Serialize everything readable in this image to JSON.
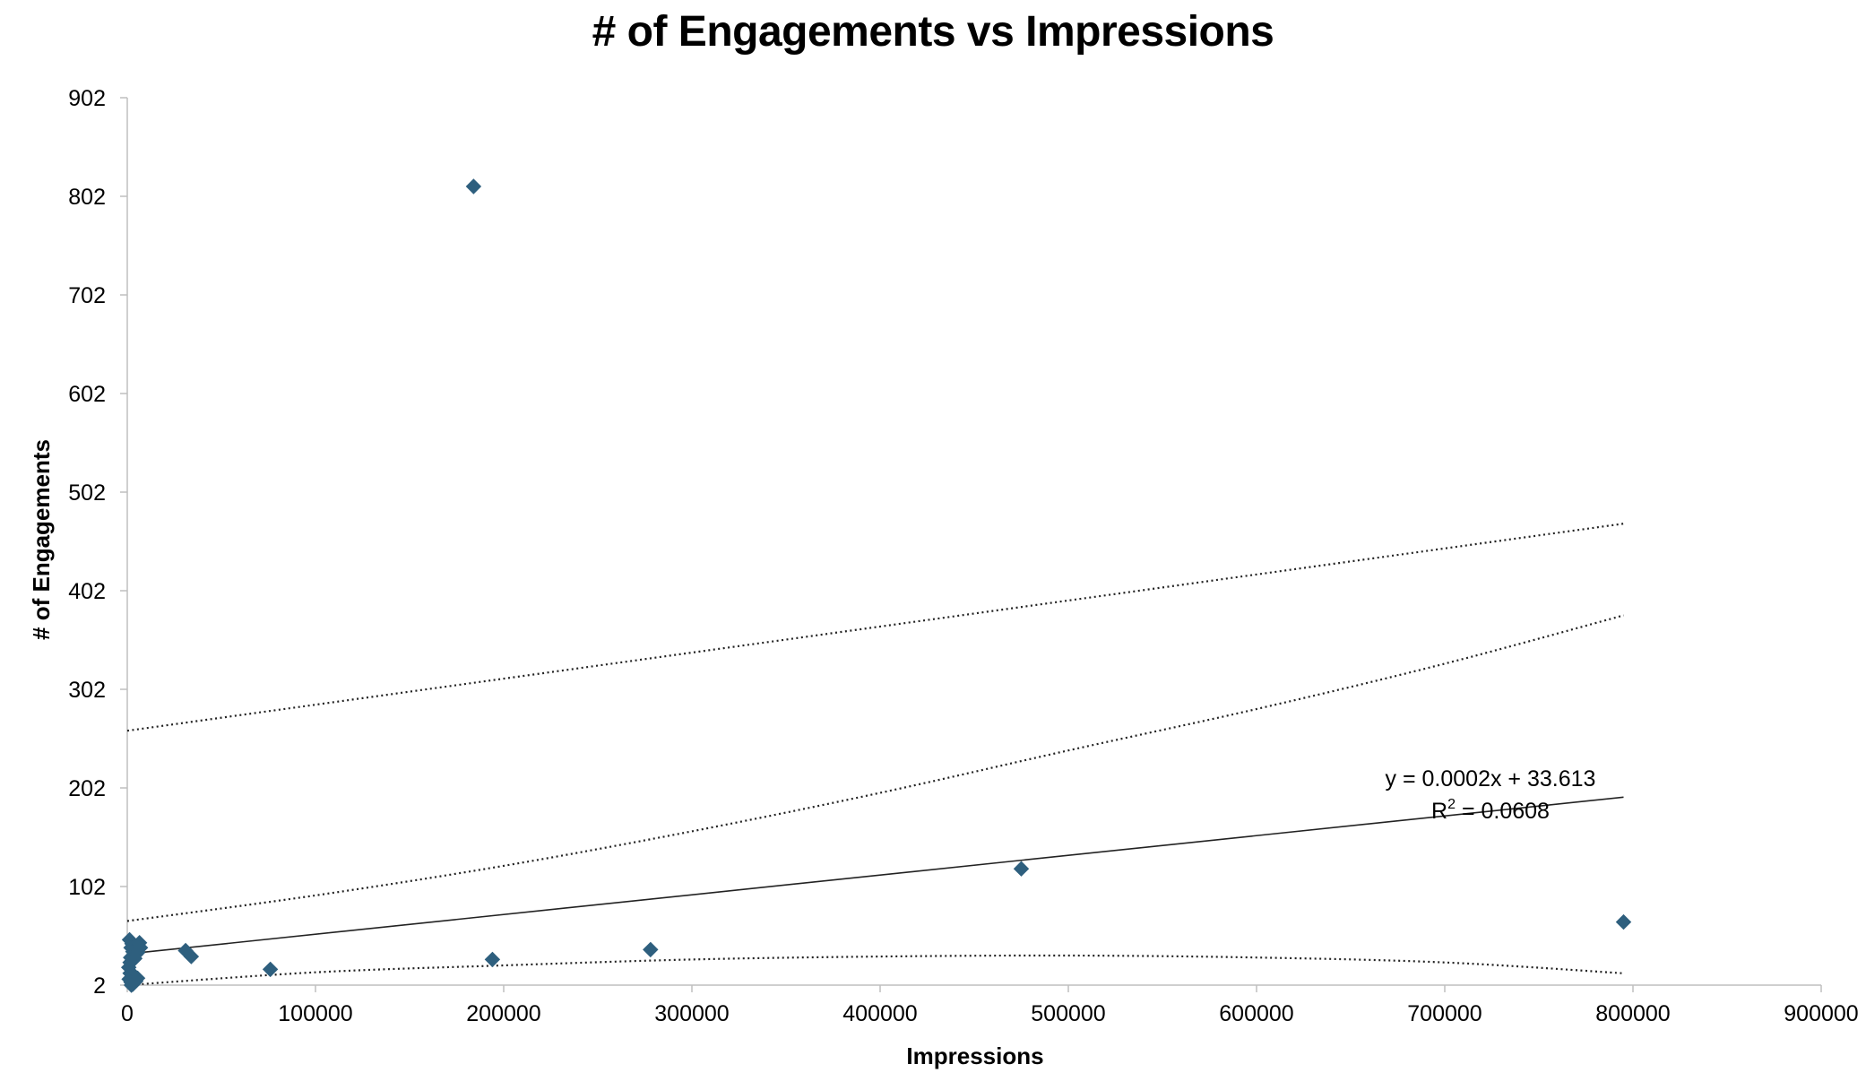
{
  "chart_data": {
    "type": "scatter",
    "title": "# of Engagements vs Impressions",
    "xlabel": "Impressions",
    "ylabel": "# of Engagements",
    "xlim": [
      0,
      900000
    ],
    "ylim": [
      2,
      902
    ],
    "x_ticks": [
      0,
      100000,
      200000,
      300000,
      400000,
      500000,
      600000,
      700000,
      800000,
      900000
    ],
    "y_ticks": [
      2,
      102,
      202,
      302,
      402,
      502,
      602,
      702,
      802,
      902
    ],
    "grid": false,
    "legend": "none",
    "marker": "diamond",
    "marker_color": "#2E5F7E",
    "series": [
      {
        "points": [
          {
            "x": 1200,
            "y": 48
          },
          {
            "x": 2500,
            "y": 44
          },
          {
            "x": 3800,
            "y": 41
          },
          {
            "x": 5200,
            "y": 38
          },
          {
            "x": 6500,
            "y": 45
          },
          {
            "x": 2000,
            "y": 40
          },
          {
            "x": 3000,
            "y": 36
          },
          {
            "x": 4500,
            "y": 33
          },
          {
            "x": 1800,
            "y": 30
          },
          {
            "x": 2800,
            "y": 27
          },
          {
            "x": 4000,
            "y": 29
          },
          {
            "x": 1500,
            "y": 25
          },
          {
            "x": 5500,
            "y": 35
          },
          {
            "x": 7000,
            "y": 40
          },
          {
            "x": 800,
            "y": 20
          },
          {
            "x": 1500,
            "y": 14
          },
          {
            "x": 2500,
            "y": 10
          },
          {
            "x": 3500,
            "y": 12
          },
          {
            "x": 1000,
            "y": 8
          },
          {
            "x": 2000,
            "y": 5
          },
          {
            "x": 3000,
            "y": 3
          },
          {
            "x": 4500,
            "y": 6
          },
          {
            "x": 5500,
            "y": 9
          },
          {
            "x": 2200,
            "y": 2
          },
          {
            "x": 31000,
            "y": 37
          },
          {
            "x": 34000,
            "y": 31
          },
          {
            "x": 76000,
            "y": 18
          },
          {
            "x": 184000,
            "y": 812
          },
          {
            "x": 194000,
            "y": 28
          },
          {
            "x": 278000,
            "y": 38
          },
          {
            "x": 475000,
            "y": 120
          },
          {
            "x": 795000,
            "y": 66
          }
        ]
      }
    ],
    "trendline": {
      "type": "linear",
      "slope": 0.0002,
      "intercept": 33.613,
      "equation_label": "y = 0.0002x + 33.613",
      "r2_label_prefix": "R",
      "r2_label_sup": "2",
      "r2_label_value": " = 0.0608"
    },
    "confidence_bands": {
      "style": "dotted",
      "upper_outer": [
        {
          "x": 0,
          "y": 260
        },
        {
          "x": 795000,
          "y": 470
        }
      ],
      "upper_inner": [
        {
          "x": 0,
          "y": 67
        },
        {
          "x": 100000,
          "y": 93
        },
        {
          "x": 200000,
          "y": 123
        },
        {
          "x": 300000,
          "y": 158
        },
        {
          "x": 400000,
          "y": 197
        },
        {
          "x": 500000,
          "y": 240
        },
        {
          "x": 600000,
          "y": 282
        },
        {
          "x": 700000,
          "y": 328
        },
        {
          "x": 795000,
          "y": 377
        }
      ],
      "lower": [
        {
          "x": 0,
          "y": 2
        },
        {
          "x": 100000,
          "y": 15
        },
        {
          "x": 200000,
          "y": 22
        },
        {
          "x": 300000,
          "y": 28
        },
        {
          "x": 400000,
          "y": 31
        },
        {
          "x": 500000,
          "y": 32
        },
        {
          "x": 600000,
          "y": 30
        },
        {
          "x": 700000,
          "y": 25
        },
        {
          "x": 795000,
          "y": 14
        }
      ]
    }
  }
}
